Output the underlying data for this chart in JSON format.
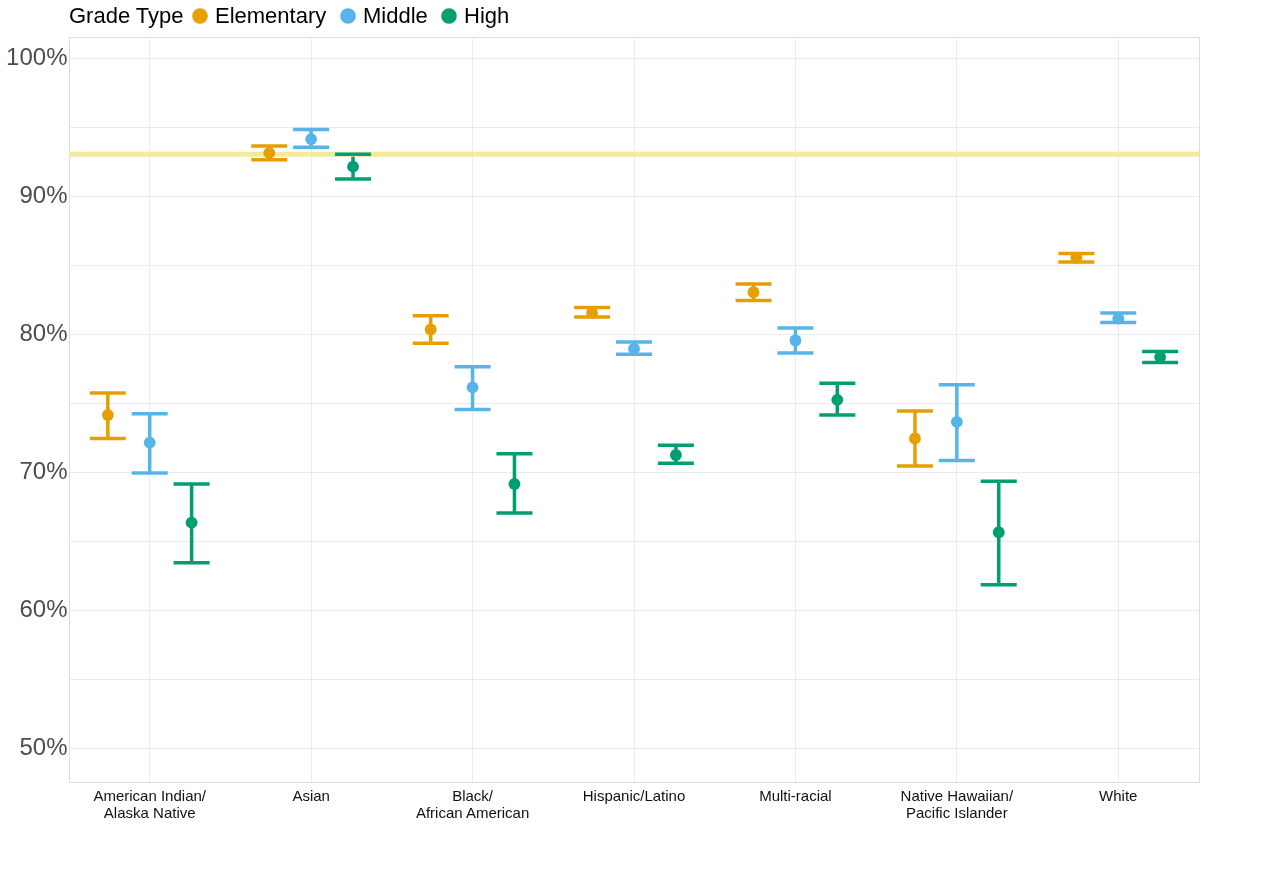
{
  "chart_data": {
    "type": "scatter",
    "legend_title": "Grade Type",
    "categories": [
      "American Indian/\nAlaska Native",
      "Asian",
      "Black/\nAfrican American",
      "Hispanic/Latino",
      "Multi-racial",
      "Native Hawaiian/\nPacific Islander",
      "White"
    ],
    "series": [
      {
        "name": "Elementary",
        "color": "#e69f00",
        "values": [
          74.1,
          93.1,
          80.3,
          81.5,
          83.0,
          72.4,
          85.5
        ],
        "errors": [
          [
            72.4,
            75.7
          ],
          [
            92.6,
            93.6
          ],
          [
            79.3,
            81.3
          ],
          [
            81.2,
            81.9
          ],
          [
            82.4,
            83.6
          ],
          [
            70.4,
            74.4
          ],
          [
            85.2,
            85.8
          ]
        ]
      },
      {
        "name": "Middle",
        "color": "#56b4e9",
        "values": [
          72.1,
          94.1,
          76.1,
          78.9,
          79.5,
          73.6,
          81.1
        ],
        "errors": [
          [
            69.9,
            74.2
          ],
          [
            93.5,
            94.8
          ],
          [
            74.5,
            77.6
          ],
          [
            78.5,
            79.4
          ],
          [
            78.6,
            80.4
          ],
          [
            70.8,
            76.3
          ],
          [
            80.8,
            81.5
          ]
        ]
      },
      {
        "name": "High",
        "color": "#009e73",
        "values": [
          66.3,
          92.1,
          69.1,
          71.2,
          75.2,
          65.6,
          78.3
        ],
        "errors": [
          [
            63.4,
            69.1
          ],
          [
            91.2,
            93.0
          ],
          [
            67.0,
            71.3
          ],
          [
            70.6,
            71.9
          ],
          [
            74.1,
            76.4
          ],
          [
            61.8,
            69.3
          ],
          [
            77.9,
            78.7
          ]
        ]
      }
    ],
    "ylim": [
      47.5,
      101.5
    ],
    "yticks": [
      {
        "value": 50,
        "label": "50%"
      },
      {
        "value": 55,
        "label": null
      },
      {
        "value": 60,
        "label": "60%"
      },
      {
        "value": 65,
        "label": null
      },
      {
        "value": 70,
        "label": "70%"
      },
      {
        "value": 75,
        "label": null
      },
      {
        "value": 80,
        "label": "80%"
      },
      {
        "value": 85,
        "label": null
      },
      {
        "value": 90,
        "label": "90%"
      },
      {
        "value": 95,
        "label": null
      },
      {
        "value": 100,
        "label": "100%"
      }
    ],
    "ref_lines": [
      {
        "axis": "y",
        "value": 93,
        "color": "#f3e99f"
      }
    ],
    "grid": true,
    "legend": "top left",
    "marker": "circle"
  }
}
